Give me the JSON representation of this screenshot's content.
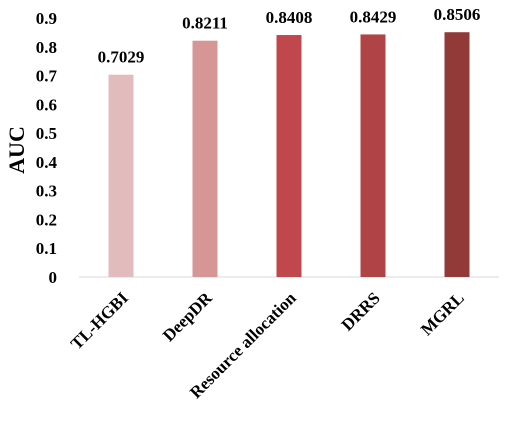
{
  "chart_data": {
    "type": "bar",
    "ylabel": "AUC",
    "xlabel": "",
    "ylim": [
      0,
      0.9
    ],
    "yticks": [
      "0",
      "0.1",
      "0.2",
      "0.3",
      "0.4",
      "0.5",
      "0.6",
      "0.7",
      "0.8",
      "0.9"
    ],
    "grid": false,
    "legend": "none",
    "categories": [
      "TL-HGBI",
      "DeepDR",
      "Resource allocation",
      "DRRS",
      "MGRL"
    ],
    "values": [
      0.7029,
      0.8211,
      0.8408,
      0.8429,
      0.8506
    ],
    "data_labels": [
      "0.7029",
      "0.8211",
      "0.8408",
      "0.8429",
      "0.8506"
    ],
    "colors": [
      "#e2bcbc",
      "#d69696",
      "#c0484c",
      "#b04346",
      "#923a37"
    ]
  }
}
